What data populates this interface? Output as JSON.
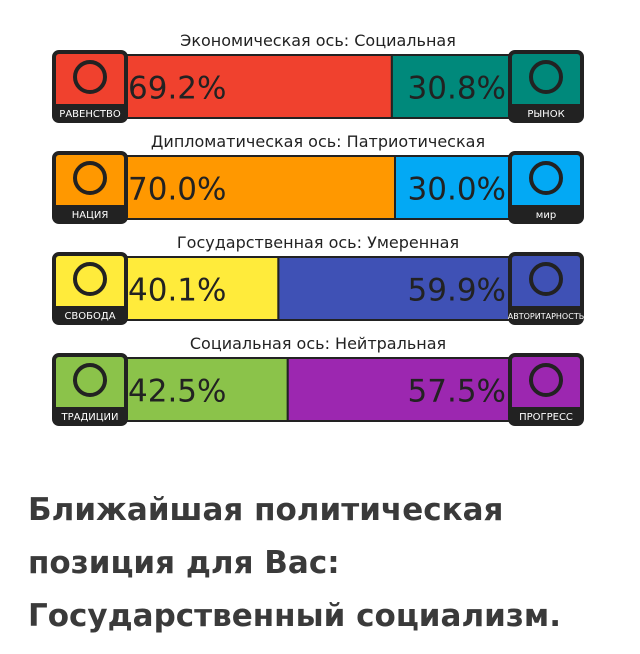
{
  "chart_data": [
    {
      "type": "split-bar",
      "title": "Экономическая ось: Социальная",
      "xlim": [
        0,
        100
      ],
      "series": [
        {
          "name": "РАВЕНСТВО",
          "color": "#f0412e",
          "values": [
            69.2
          ],
          "value_labels": [
            "69.2%"
          ]
        },
        {
          "name": "РЫНОК",
          "color": "#00897b",
          "values": [
            30.8
          ],
          "value_labels": [
            "30.8%"
          ]
        }
      ]
    },
    {
      "type": "split-bar",
      "title": "Дипломатическая ось: Патриотическая",
      "xlim": [
        0,
        100
      ],
      "series": [
        {
          "name": "НАЦИЯ",
          "color": "#ff9800",
          "values": [
            70.0
          ],
          "value_labels": [
            "70.0%"
          ]
        },
        {
          "name": "мир",
          "color": "#03a9f4",
          "values": [
            30.0
          ],
          "value_labels": [
            "30.0%"
          ]
        }
      ]
    },
    {
      "type": "split-bar",
      "title": "Государственная ось: Умеренная",
      "xlim": [
        0,
        100
      ],
      "series": [
        {
          "name": "СВОБОДА",
          "color": "#ffeb3b",
          "values": [
            40.1
          ],
          "value_labels": [
            "40.1%"
          ]
        },
        {
          "name": "АВТОРИТАРНОСТЬ",
          "color": "#3f51b5",
          "values": [
            59.9
          ],
          "value_labels": [
            "59.9%"
          ]
        }
      ]
    },
    {
      "type": "split-bar",
      "title": "Социальная ось: Нейтральная",
      "xlim": [
        0,
        100
      ],
      "series": [
        {
          "name": "ТРАДИЦИИ",
          "color": "#8bc34a",
          "values": [
            42.5
          ],
          "value_labels": [
            "42.5%"
          ]
        },
        {
          "name": "ПРОГРЕСС",
          "color": "#9c27b0",
          "values": [
            57.5
          ],
          "value_labels": [
            "57.5%"
          ]
        }
      ]
    }
  ],
  "conclusion": [
    "Ближайшая политическая",
    "позиция для Вас:",
    "Государственный социализм."
  ]
}
